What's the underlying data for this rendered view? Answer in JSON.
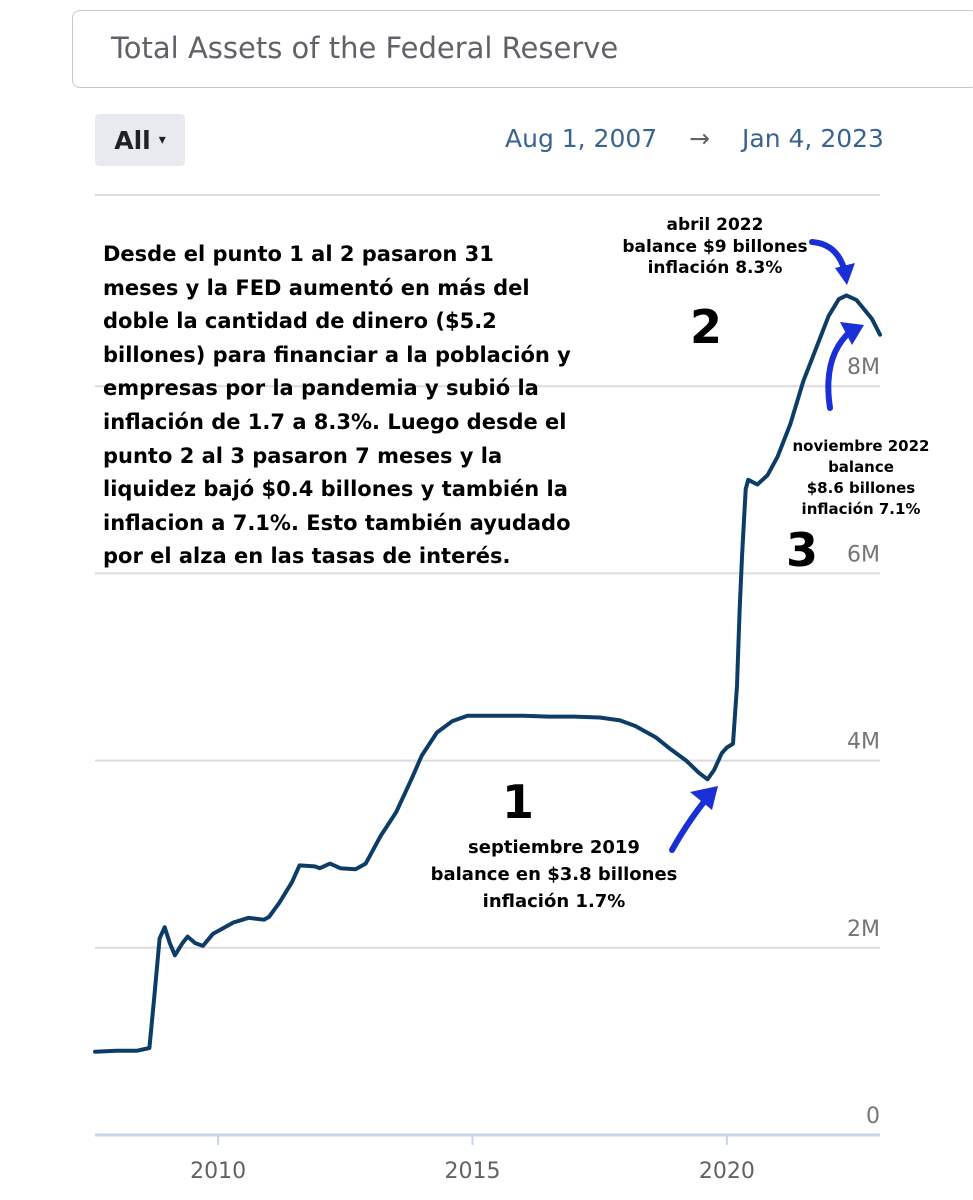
{
  "search": {
    "value": "Total Assets of the Federal Reserve"
  },
  "range": {
    "label": "All",
    "caret": "▾",
    "start": "Aug 1, 2007",
    "arrow": "→",
    "end": "Jan 4, 2023"
  },
  "colors": {
    "line": "#0d3d66",
    "grid": "#dadce0",
    "annotation_arrow": "#1a2fd6"
  },
  "annotations": {
    "paragraph": "Desde el punto 1 al 2 pasaron 31 meses y la FED aumentó en más del doble la cantidad de dinero ($5.2 billones) para financiar a la población y empresas por la pandemia y subió la inflación de 1.7 a 8.3%. Luego desde el punto 2 al 3 pasaron 7 meses y la liquidez bajó $0.4 billones y también la inflacion a 7.1%. Esto también ayudado por el alza en las tasas de interés.",
    "point1": {
      "num": "1",
      "lines": [
        "septiembre 2019",
        "balance en $3.8 billones",
        "inflación 1.7%"
      ]
    },
    "point2": {
      "num": "2",
      "lines": [
        "abril 2022",
        "balance $9 billones",
        "inflación 8.3%"
      ]
    },
    "point3": {
      "num": "3",
      "lines": [
        "noviembre 2022",
        "balance",
        "$8.6 billones",
        "inflación 7.1%"
      ]
    }
  },
  "chart_data": {
    "type": "line",
    "title": "Total Assets of the Federal Reserve",
    "xlabel": "",
    "ylabel": "",
    "xlim": [
      2007.58,
      2023.01
    ],
    "ylim": [
      0,
      10
    ],
    "y_ticks": [
      {
        "value": 0,
        "label": "0"
      },
      {
        "value": 2,
        "label": "2M"
      },
      {
        "value": 4,
        "label": "4M"
      },
      {
        "value": 6,
        "label": "6M"
      },
      {
        "value": 8,
        "label": "8M"
      }
    ],
    "x_ticks": [
      {
        "value": 2010,
        "label": "2010"
      },
      {
        "value": 2015,
        "label": "2015"
      },
      {
        "value": 2020,
        "label": "2020"
      }
    ],
    "series": [
      {
        "name": "Total Assets",
        "points": [
          [
            2007.58,
            0.89
          ],
          [
            2008.0,
            0.9
          ],
          [
            2008.4,
            0.9
          ],
          [
            2008.65,
            0.93
          ],
          [
            2008.75,
            1.5
          ],
          [
            2008.85,
            2.1
          ],
          [
            2008.95,
            2.22
          ],
          [
            2009.05,
            2.05
          ],
          [
            2009.15,
            1.92
          ],
          [
            2009.3,
            2.05
          ],
          [
            2009.4,
            2.12
          ],
          [
            2009.55,
            2.05
          ],
          [
            2009.7,
            2.02
          ],
          [
            2009.9,
            2.15
          ],
          [
            2010.0,
            2.18
          ],
          [
            2010.3,
            2.27
          ],
          [
            2010.6,
            2.32
          ],
          [
            2010.9,
            2.3
          ],
          [
            2011.0,
            2.33
          ],
          [
            2011.2,
            2.48
          ],
          [
            2011.45,
            2.7
          ],
          [
            2011.6,
            2.88
          ],
          [
            2011.9,
            2.87
          ],
          [
            2012.0,
            2.85
          ],
          [
            2012.2,
            2.9
          ],
          [
            2012.4,
            2.85
          ],
          [
            2012.7,
            2.84
          ],
          [
            2012.9,
            2.9
          ],
          [
            2013.2,
            3.2
          ],
          [
            2013.5,
            3.45
          ],
          [
            2013.8,
            3.8
          ],
          [
            2014.0,
            4.05
          ],
          [
            2014.3,
            4.3
          ],
          [
            2014.6,
            4.42
          ],
          [
            2014.9,
            4.48
          ],
          [
            2015.3,
            4.48
          ],
          [
            2016.0,
            4.48
          ],
          [
            2016.5,
            4.47
          ],
          [
            2017.0,
            4.47
          ],
          [
            2017.5,
            4.46
          ],
          [
            2017.9,
            4.43
          ],
          [
            2018.2,
            4.37
          ],
          [
            2018.6,
            4.25
          ],
          [
            2018.9,
            4.12
          ],
          [
            2019.2,
            4.0
          ],
          [
            2019.45,
            3.87
          ],
          [
            2019.62,
            3.8
          ],
          [
            2019.75,
            3.9
          ],
          [
            2019.9,
            4.08
          ],
          [
            2020.0,
            4.14
          ],
          [
            2020.12,
            4.18
          ],
          [
            2020.2,
            4.8
          ],
          [
            2020.25,
            5.6
          ],
          [
            2020.3,
            6.2
          ],
          [
            2020.37,
            6.9
          ],
          [
            2020.42,
            7.0
          ],
          [
            2020.6,
            6.95
          ],
          [
            2020.8,
            7.05
          ],
          [
            2021.0,
            7.25
          ],
          [
            2021.25,
            7.6
          ],
          [
            2021.5,
            8.05
          ],
          [
            2021.75,
            8.4
          ],
          [
            2022.0,
            8.75
          ],
          [
            2022.2,
            8.93
          ],
          [
            2022.35,
            8.97
          ],
          [
            2022.55,
            8.92
          ],
          [
            2022.85,
            8.72
          ],
          [
            2023.01,
            8.55
          ]
        ]
      }
    ]
  }
}
